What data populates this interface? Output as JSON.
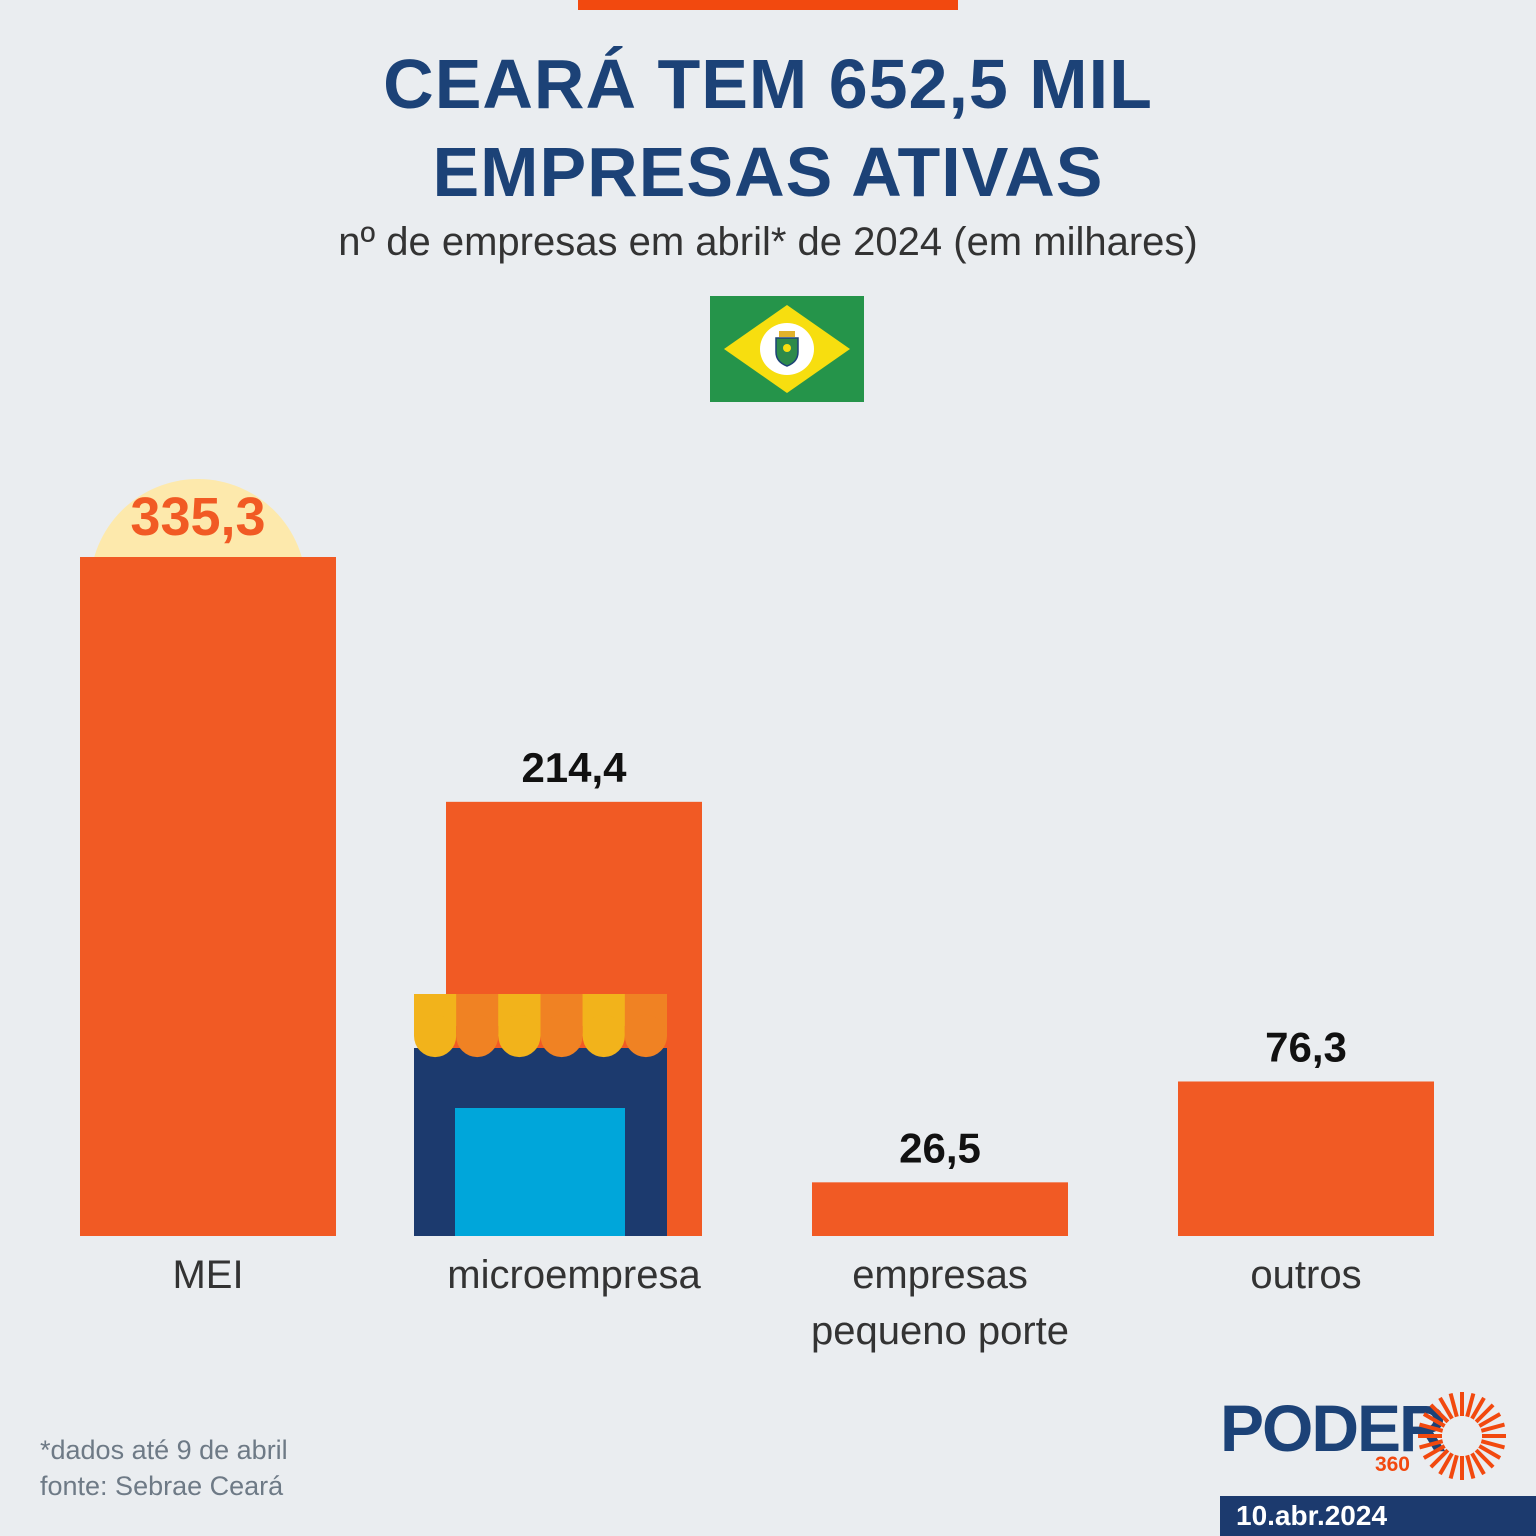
{
  "header": {
    "title_line1": "CEARÁ TEM 652,5 MIL",
    "title_line2": "EMPRESAS ATIVAS",
    "subtitle": "nº de empresas em abril* de 2024 (em milhares)"
  },
  "colors": {
    "bar": "#f15a24",
    "highlight_value": "#f15a24",
    "highlight_circle": "#fde9ac",
    "value_text": "#111111",
    "category_text": "#333333"
  },
  "chart_data": {
    "type": "bar",
    "title": "CEARÁ TEM 652,5 MIL EMPRESAS ATIVAS",
    "subtitle": "nº de empresas em abril* de 2024 (em milhares)",
    "xlabel": "",
    "ylabel": "",
    "categories": [
      [
        "MEI"
      ],
      [
        "microempresa"
      ],
      [
        "empresas",
        "pequeno porte"
      ],
      [
        "outros"
      ]
    ],
    "values": [
      335.3,
      214.4,
      26.5,
      76.3
    ],
    "value_labels": [
      "335,3",
      "214,4",
      "26,5",
      "76,3"
    ],
    "highlighted_index": 0,
    "ylim": [
      0,
      335.3
    ],
    "grid": false,
    "legend": "none"
  },
  "footer": {
    "note": "*dados até 9 de abril",
    "source": "fonte: Sebrae Ceará",
    "logo_word": "PODER",
    "logo_number": "360",
    "date": "10.abr.2024"
  }
}
